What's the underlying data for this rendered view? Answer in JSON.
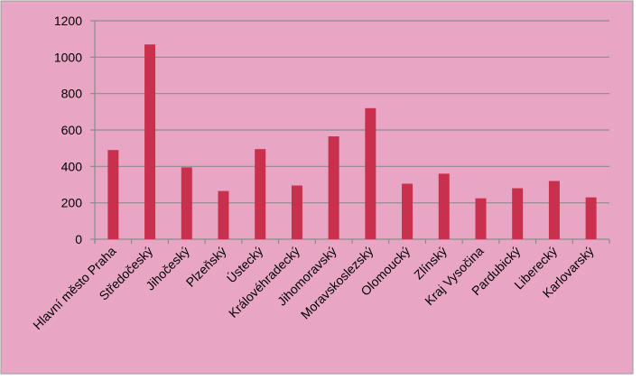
{
  "chart_data": {
    "type": "bar",
    "categories": [
      "Hlavní město Praha",
      "Středočeský",
      "Jihočeský",
      "Plzeňský",
      "Ústecký",
      "Královéhradecký",
      "Jihomoravský",
      "Moravskoslezský",
      "Olomoucký",
      "Zlínský",
      "Kraj Vysočina",
      "Pardubický",
      "Liberecký",
      "Karlovarský"
    ],
    "values": [
      490,
      1070,
      395,
      265,
      495,
      295,
      565,
      720,
      305,
      360,
      225,
      280,
      320,
      230
    ],
    "color": "#c8304e",
    "ylim": [
      0,
      1200
    ],
    "yticks": [
      0,
      200,
      400,
      600,
      800,
      1000,
      1200
    ],
    "grid": true
  }
}
